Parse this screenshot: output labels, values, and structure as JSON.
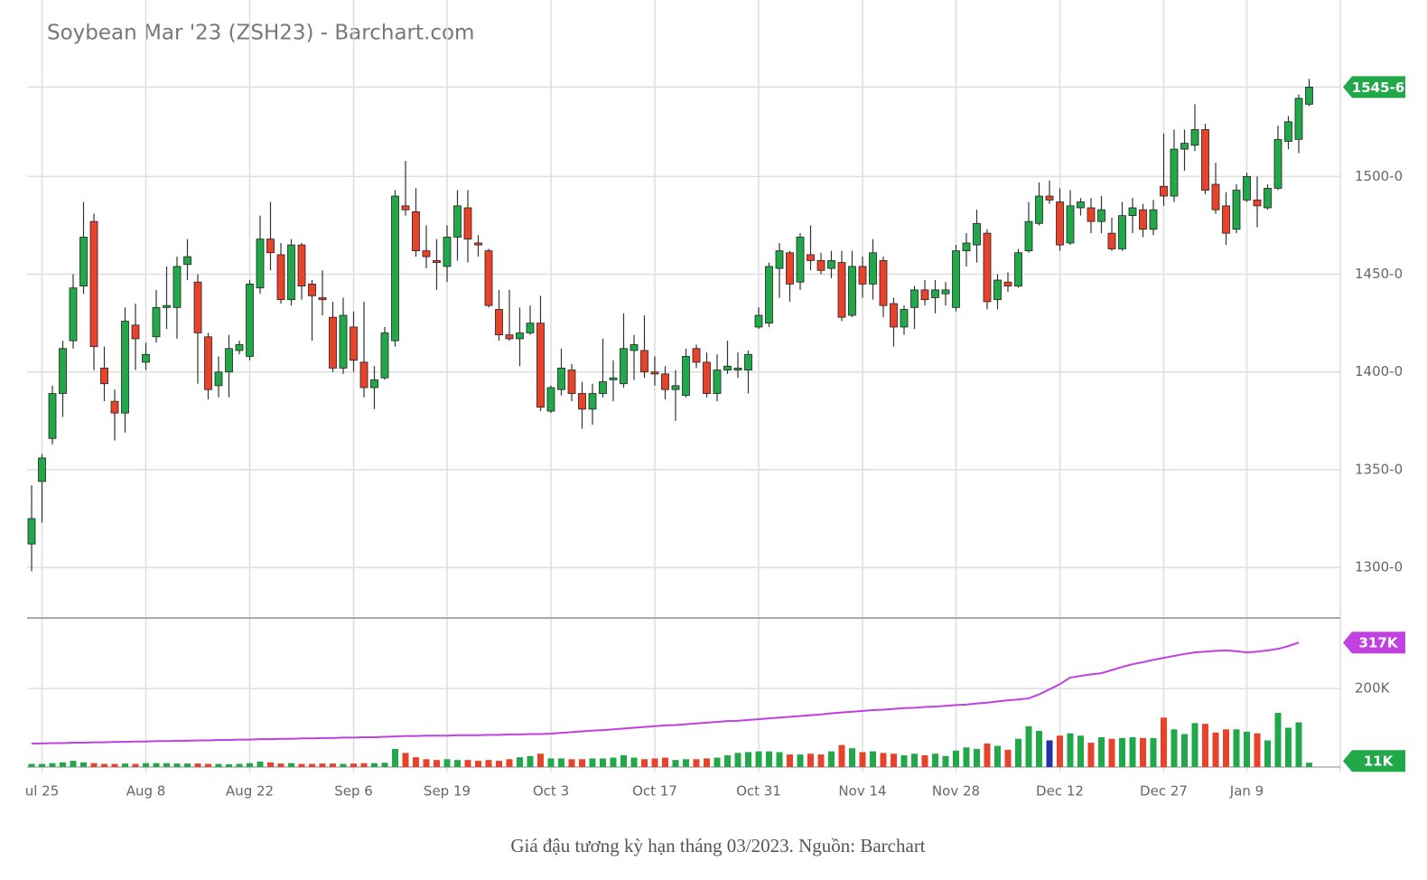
{
  "chart_data": {
    "type": "candlestick",
    "title": "Soybean Mar '23 (ZSH23) - Barchart.com",
    "caption": "Giá đậu tương kỳ hạn tháng 03/2023. Nguồn: Barchart",
    "up_color": "#21a849",
    "down_color": "#e8432a",
    "categories": [
      null,
      "ul 25",
      null,
      null,
      null,
      null,
      null,
      null,
      null,
      null,
      null,
      "Aug 8",
      null,
      null,
      null,
      null,
      null,
      null,
      null,
      null,
      null,
      "Aug 22",
      null,
      null,
      null,
      null,
      null,
      null,
      null,
      null,
      null,
      "Sep 6",
      null,
      null,
      null,
      null,
      null,
      null,
      null,
      null,
      "Sep 19",
      null,
      null,
      null,
      null,
      null,
      null,
      null,
      null,
      null,
      "Oct 3",
      null,
      null,
      null,
      null,
      null,
      null,
      null,
      null,
      null,
      "Oct 17",
      null,
      null,
      null,
      null,
      null,
      null,
      null,
      null,
      null,
      "Oct 31",
      null,
      null,
      null,
      null,
      null,
      null,
      null,
      null,
      null,
      "Nov 14",
      null,
      null,
      null,
      null,
      null,
      null,
      null,
      null,
      "Nov 28",
      null,
      null,
      null,
      null,
      null,
      null,
      null,
      null,
      null,
      "Dec 12",
      null,
      null,
      null,
      null,
      null,
      null,
      null,
      null,
      null,
      "Dec 27",
      null,
      null,
      null,
      null,
      null,
      null,
      null,
      "Jan 9",
      null,
      null,
      null,
      null,
      null,
      null
    ],
    "ohlc": [
      [
        1312,
        1342,
        1298,
        1325
      ],
      [
        1344,
        1358,
        1323,
        1356
      ],
      [
        1366,
        1393,
        1363,
        1389
      ],
      [
        1389,
        1416,
        1377,
        1412
      ],
      [
        1416,
        1450,
        1412,
        1443
      ],
      [
        1444,
        1487,
        1440,
        1469
      ],
      [
        1477,
        1481,
        1401,
        1413
      ],
      [
        1402,
        1413,
        1385,
        1394
      ],
      [
        1385,
        1391,
        1365,
        1379
      ],
      [
        1379,
        1433,
        1369,
        1426
      ],
      [
        1424,
        1435,
        1401,
        1417
      ],
      [
        1405,
        1415,
        1401,
        1409
      ],
      [
        1418,
        1442,
        1415,
        1433
      ],
      [
        1433,
        1454,
        1422,
        1434
      ],
      [
        1433,
        1459,
        1417,
        1454
      ],
      [
        1455,
        1468,
        1447,
        1459
      ],
      [
        1446,
        1450,
        1394,
        1420
      ],
      [
        1418,
        1420,
        1386,
        1391
      ],
      [
        1393,
        1408,
        1387,
        1400
      ],
      [
        1400,
        1419,
        1387,
        1412
      ],
      [
        1411,
        1416,
        1409,
        1414
      ],
      [
        1408,
        1447,
        1406,
        1445
      ],
      [
        1443,
        1480,
        1440,
        1468
      ],
      [
        1468,
        1487,
        1452,
        1461
      ],
      [
        1460,
        1466,
        1435,
        1437
      ],
      [
        1437,
        1468,
        1434,
        1465
      ],
      [
        1465,
        1466,
        1437,
        1444
      ],
      [
        1445,
        1447,
        1416,
        1439
      ],
      [
        1438,
        1452,
        1429,
        1437
      ],
      [
        1428,
        1436,
        1400,
        1402
      ],
      [
        1402,
        1438,
        1399,
        1429
      ],
      [
        1423,
        1431,
        1400,
        1406
      ],
      [
        1405,
        1436,
        1387,
        1392
      ],
      [
        1392,
        1403,
        1381,
        1396
      ],
      [
        1397,
        1423,
        1396,
        1420
      ],
      [
        1416,
        1493,
        1413,
        1490
      ],
      [
        1485,
        1508,
        1480,
        1483
      ],
      [
        1482,
        1494,
        1459,
        1462
      ],
      [
        1462,
        1475,
        1453,
        1459
      ],
      [
        1457,
        1468,
        1442,
        1456
      ],
      [
        1454,
        1475,
        1446,
        1469
      ],
      [
        1469,
        1493,
        1457,
        1485
      ],
      [
        1484,
        1493,
        1456,
        1468
      ],
      [
        1466,
        1470,
        1459,
        1465
      ],
      [
        1462,
        1463,
        1433,
        1434
      ],
      [
        1432,
        1442,
        1416,
        1419
      ],
      [
        1419,
        1442,
        1416,
        1417
      ],
      [
        1417,
        1433,
        1403,
        1420
      ],
      [
        1420,
        1434,
        1419,
        1425
      ],
      [
        1425,
        1439,
        1380,
        1382
      ],
      [
        1380,
        1393,
        1379,
        1392
      ],
      [
        1391,
        1412,
        1388,
        1402
      ],
      [
        1401,
        1404,
        1385,
        1389
      ],
      [
        1389,
        1395,
        1371,
        1381
      ],
      [
        1381,
        1394,
        1373,
        1389
      ],
      [
        1389,
        1417,
        1387,
        1395
      ],
      [
        1396,
        1406,
        1385,
        1397
      ],
      [
        1394,
        1430,
        1392,
        1412
      ],
      [
        1411,
        1419,
        1396,
        1414
      ],
      [
        1411,
        1429,
        1397,
        1400
      ],
      [
        1400,
        1408,
        1393,
        1399
      ],
      [
        1399,
        1403,
        1386,
        1391
      ],
      [
        1391,
        1401,
        1375,
        1393
      ],
      [
        1388,
        1412,
        1387,
        1408
      ],
      [
        1412,
        1414,
        1402,
        1405
      ],
      [
        1405,
        1410,
        1387,
        1389
      ],
      [
        1389,
        1409,
        1385,
        1401
      ],
      [
        1401,
        1416,
        1399,
        1403
      ],
      [
        1401,
        1410,
        1397,
        1402
      ],
      [
        1401,
        1411,
        1389,
        1409
      ],
      [
        1423,
        1433,
        1422,
        1429
      ],
      [
        1425,
        1456,
        1423,
        1454
      ],
      [
        1453,
        1466,
        1438,
        1462
      ],
      [
        1461,
        1462,
        1436,
        1445
      ],
      [
        1446,
        1471,
        1442,
        1469
      ],
      [
        1460,
        1475,
        1452,
        1457
      ],
      [
        1457,
        1461,
        1450,
        1452
      ],
      [
        1453,
        1462,
        1448,
        1457
      ],
      [
        1456,
        1462,
        1426,
        1428
      ],
      [
        1429,
        1462,
        1428,
        1454
      ],
      [
        1454,
        1459,
        1438,
        1445
      ],
      [
        1445,
        1468,
        1437,
        1461
      ],
      [
        1457,
        1459,
        1428,
        1434
      ],
      [
        1435,
        1438,
        1413,
        1423
      ],
      [
        1423,
        1434,
        1419,
        1432
      ],
      [
        1433,
        1444,
        1422,
        1442
      ],
      [
        1442,
        1447,
        1434,
        1437
      ],
      [
        1438,
        1447,
        1430,
        1442
      ],
      [
        1440,
        1446,
        1434,
        1442
      ],
      [
        1433,
        1465,
        1431,
        1462
      ],
      [
        1462,
        1471,
        1454,
        1466
      ],
      [
        1465,
        1483,
        1456,
        1476
      ],
      [
        1471,
        1473,
        1432,
        1436
      ],
      [
        1437,
        1450,
        1432,
        1447
      ],
      [
        1446,
        1451,
        1441,
        1444
      ],
      [
        1444,
        1463,
        1443,
        1461
      ],
      [
        1462,
        1487,
        1461,
        1477
      ],
      [
        1476,
        1497,
        1475,
        1490
      ],
      [
        1490,
        1498,
        1486,
        1488
      ],
      [
        1487,
        1494,
        1462,
        1465
      ],
      [
        1466,
        1493,
        1465,
        1485
      ],
      [
        1484,
        1489,
        1480,
        1487
      ],
      [
        1484,
        1489,
        1471,
        1477
      ],
      [
        1477,
        1490,
        1471,
        1483
      ],
      [
        1471,
        1479,
        1462,
        1463
      ],
      [
        1463,
        1487,
        1462,
        1480
      ],
      [
        1480,
        1489,
        1471,
        1484
      ],
      [
        1483,
        1486,
        1469,
        1473
      ],
      [
        1473,
        1488,
        1470,
        1483
      ],
      [
        1495,
        1522,
        1485,
        1490
      ],
      [
        1490,
        1524,
        1487,
        1514
      ],
      [
        1514,
        1524,
        1503,
        1517
      ],
      [
        1516,
        1537,
        1513,
        1524
      ],
      [
        1524,
        1527,
        1491,
        1493
      ],
      [
        1496,
        1507,
        1481,
        1483
      ],
      [
        1485,
        1492,
        1465,
        1471
      ],
      [
        1473,
        1496,
        1471,
        1493
      ],
      [
        1488,
        1502,
        1487,
        1500
      ],
      [
        1488,
        1500,
        1474,
        1485
      ],
      [
        1484,
        1496,
        1483,
        1494
      ],
      [
        1494,
        1526,
        1493,
        1519
      ],
      [
        1518,
        1531,
        1514,
        1528
      ],
      [
        1519,
        1542,
        1512,
        1540
      ],
      [
        1537,
        1550,
        1536,
        1545.75
      ]
    ],
    "ylim": [
      1276,
      1588
    ],
    "yticks": [
      {
        "value": 1300,
        "label": "1300-0"
      },
      {
        "value": 1350,
        "label": "1350-0"
      },
      {
        "value": 1400,
        "label": "1400-0"
      },
      {
        "value": 1450,
        "label": "1450-0"
      },
      {
        "value": 1500,
        "label": "1500-0"
      }
    ],
    "last_price": {
      "value": 1545.75,
      "label": "1545-6"
    },
    "volume": {
      "ylim": [
        0,
        375
      ],
      "yticks": [
        {
          "value": 200,
          "label": "200K"
        }
      ],
      "highlight": {
        "index": 98,
        "color": "#2233aa"
      },
      "values": [
        8,
        8,
        10,
        12,
        16,
        12,
        10,
        8,
        8,
        9,
        8,
        10,
        10,
        10,
        9,
        9,
        9,
        8,
        8,
        7,
        8,
        10,
        14,
        12,
        9,
        10,
        8,
        8,
        9,
        9,
        8,
        9,
        10,
        10,
        11,
        46,
        36,
        25,
        20,
        18,
        20,
        18,
        18,
        16,
        18,
        16,
        20,
        25,
        28,
        34,
        22,
        22,
        20,
        20,
        22,
        22,
        24,
        30,
        24,
        20,
        22,
        24,
        18,
        20,
        20,
        22,
        24,
        30,
        36,
        38,
        40,
        40,
        38,
        32,
        32,
        34,
        32,
        40,
        56,
        48,
        38,
        40,
        36,
        34,
        30,
        34,
        30,
        34,
        28,
        42,
        50,
        46,
        60,
        54,
        44,
        72,
        104,
        92,
        68,
        80,
        86,
        80,
        62,
        76,
        72,
        74,
        76,
        74,
        74,
        126,
        96,
        84,
        112,
        110,
        88,
        96,
        96,
        90,
        86,
        68,
        138,
        100,
        114,
        11
      ],
      "last_label": {
        "value": 11,
        "label": "11K"
      },
      "open_interest": {
        "color": "#c040e0",
        "values": [
          60,
          60,
          61,
          61,
          62,
          62,
          63,
          63,
          64,
          64,
          65,
          65,
          66,
          66,
          67,
          67,
          68,
          68,
          69,
          69,
          70,
          70,
          71,
          71,
          72,
          72,
          73,
          73,
          74,
          74,
          75,
          75,
          76,
          76,
          77,
          78,
          79,
          79,
          80,
          80,
          80,
          81,
          81,
          81,
          82,
          82,
          83,
          83,
          84,
          84,
          85,
          87,
          89,
          91,
          93,
          94,
          96,
          98,
          100,
          102,
          104,
          106,
          107,
          109,
          111,
          113,
          115,
          117,
          118,
          120,
          122,
          124,
          126,
          128,
          130,
          132,
          134,
          137,
          139,
          141,
          143,
          145,
          146,
          148,
          150,
          151,
          153,
          154,
          156,
          158,
          159,
          162,
          164,
          167,
          170,
          172,
          175,
          185,
          198,
          211,
          228,
          232,
          236,
          239,
          247,
          255,
          262,
          267,
          273,
          278,
          283,
          288,
          292,
          294,
          296,
          297,
          295,
          292,
          294,
          297,
          301,
          308,
          317,
          null
        ],
        "last_label": {
          "value": 317,
          "label": "317K"
        }
      }
    }
  }
}
